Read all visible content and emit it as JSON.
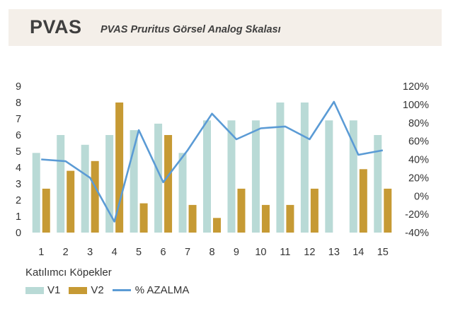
{
  "header": {
    "title": "PVAS",
    "subtitle": "PVAS Pruritus Görsel Analog Skalası"
  },
  "colors": {
    "v1": "#b9dad6",
    "v2": "#c69a34",
    "line": "#5b9bd5",
    "header_bg": "#f4efe9"
  },
  "chart_data": {
    "type": "bar",
    "categories": [
      "1",
      "2",
      "3",
      "4",
      "5",
      "6",
      "7",
      "8",
      "9",
      "10",
      "11",
      "12",
      "13",
      "14",
      "15"
    ],
    "series": [
      {
        "name": "V1",
        "type": "bar",
        "axis": "left",
        "values": [
          4.9,
          6.0,
          5.4,
          6.0,
          6.3,
          6.7,
          4.9,
          6.9,
          6.9,
          6.9,
          8.0,
          8.0,
          6.9,
          6.9,
          6.0
        ]
      },
      {
        "name": "V2",
        "type": "bar",
        "axis": "left",
        "values": [
          2.7,
          3.8,
          4.4,
          8.0,
          1.8,
          6.0,
          1.7,
          0.9,
          2.7,
          1.7,
          1.7,
          2.7,
          0,
          3.9,
          2.7
        ]
      },
      {
        "name": "% AZALMA",
        "type": "line",
        "axis": "right",
        "values": [
          40,
          38,
          20,
          -28,
          72,
          15,
          50,
          90,
          62,
          74,
          76,
          62,
          103,
          45,
          50
        ]
      }
    ],
    "ylim_left": [
      0,
      9
    ],
    "yticks_left": [
      "0",
      "1",
      "2",
      "3",
      "4",
      "5",
      "6",
      "7",
      "8",
      "9"
    ],
    "ylim_right": [
      -40,
      120
    ],
    "yticks_right": [
      "-40%",
      "-20%",
      "0%",
      "20%",
      "40%",
      "60%",
      "80%",
      "100%",
      "120%"
    ],
    "legend": {
      "title": "Katılımcı Köpekler",
      "items": [
        "V1",
        "V2",
        "% AZALMA"
      ],
      "position": "bottom-left"
    },
    "grid": false
  }
}
